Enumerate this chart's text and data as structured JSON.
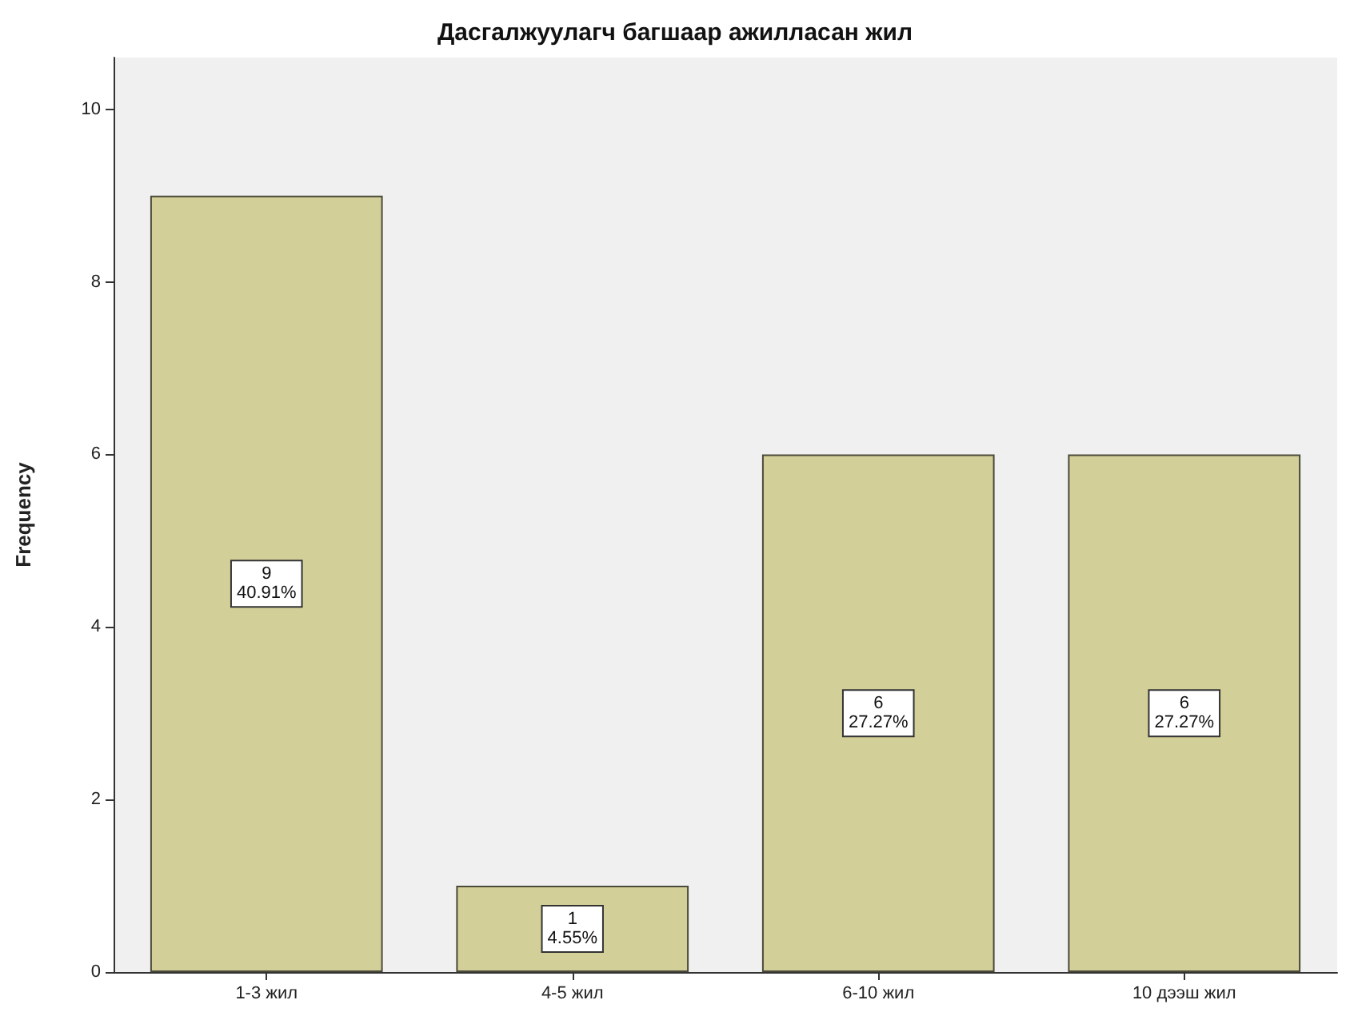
{
  "chart_data": {
    "type": "bar",
    "title": "Дасгалжуулагч багшаар ажилласан жил",
    "ylabel": "Frequency",
    "categories": [
      "1-3 жил",
      "4-5 жил",
      "6-10 жил",
      "10 дээш жил"
    ],
    "values": [
      9,
      1,
      6,
      6
    ],
    "color": "#d3cf98",
    "value_labels": [
      "9\n40.91%",
      "1\n4.55%",
      "6\n27.27%",
      "6\n27.27%"
    ],
    "ylim": [
      0,
      10.6
    ],
    "yticks": [
      0,
      2,
      4,
      6,
      8,
      10
    ],
    "grid": false
  }
}
